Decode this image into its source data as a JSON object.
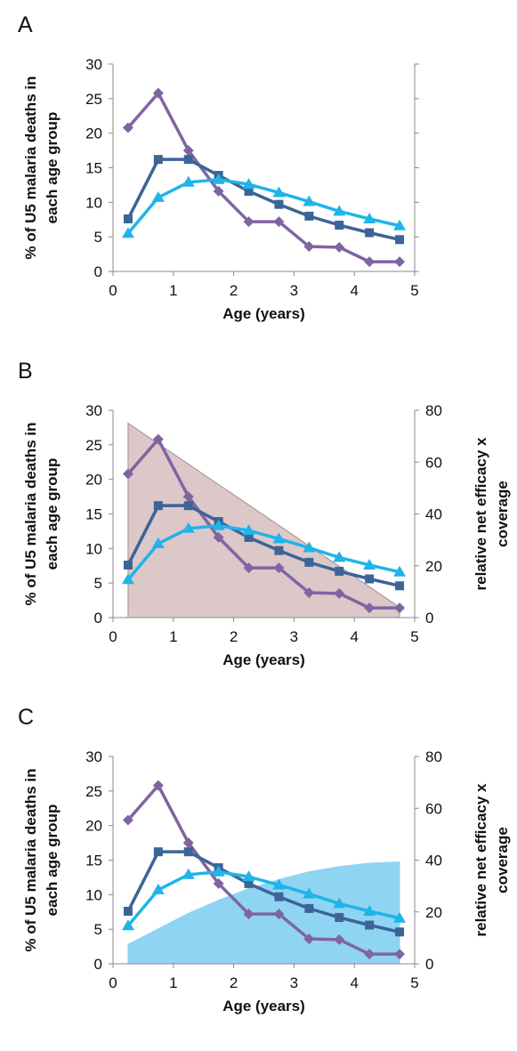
{
  "chart_data": [
    {
      "type": "line",
      "panel_label": "A",
      "xlabel": "Age (years)",
      "ylabel": [
        "% of U5 malaria deaths in",
        "each age group"
      ],
      "xlim": [
        0,
        5
      ],
      "ylim": [
        0,
        30
      ],
      "xticks": [
        "0",
        "1",
        "2",
        "3",
        "4",
        "5"
      ],
      "yticks": [
        "0",
        "5",
        "10",
        "15",
        "20",
        "25",
        "30"
      ],
      "grid": false,
      "series": [
        {
          "color": "#8064a2",
          "marker": "diamond",
          "x": [
            0.25,
            0.75,
            1.25,
            1.75,
            2.25,
            2.75,
            3.25,
            3.75,
            4.25,
            4.75
          ],
          "y": [
            20.8,
            25.8,
            17.5,
            11.6,
            7.2,
            7.2,
            3.6,
            3.5,
            1.4,
            1.4
          ]
        },
        {
          "color": "#3c6496",
          "marker": "square",
          "x": [
            0.25,
            0.75,
            1.25,
            1.75,
            2.25,
            2.75,
            3.25,
            3.75,
            4.25,
            4.75
          ],
          "y": [
            7.6,
            16.2,
            16.2,
            13.9,
            11.6,
            9.7,
            8.0,
            6.7,
            5.6,
            4.6
          ]
        },
        {
          "color": "#1fb4ea",
          "marker": "triangle",
          "x": [
            0.25,
            0.75,
            1.25,
            1.75,
            2.25,
            2.75,
            3.25,
            3.75,
            4.25,
            4.75
          ],
          "y": [
            5.5,
            10.7,
            12.9,
            13.3,
            12.6,
            11.4,
            10.1,
            8.7,
            7.6,
            6.6
          ]
        }
      ]
    },
    {
      "type": "line",
      "panel_label": "B",
      "xlabel": "Age (years)",
      "ylabel": [
        "% of U5 malaria deaths in",
        "each age group"
      ],
      "ylabel_right": [
        "relative net efficacy x",
        "coverage"
      ],
      "xlim": [
        0,
        5
      ],
      "ylim": [
        0,
        30
      ],
      "ylim_right": [
        0,
        80
      ],
      "xticks": [
        "0",
        "1",
        "2",
        "3",
        "4",
        "5"
      ],
      "yticks": [
        "0",
        "5",
        "10",
        "15",
        "20",
        "25",
        "30"
      ],
      "yticks_right": [
        "0",
        "20",
        "40",
        "60",
        "80"
      ],
      "grid": false,
      "area": {
        "color": "#dcc7c9",
        "edge": "#a09090",
        "axis": "right",
        "x": [
          0.25,
          4.75
        ],
        "y": [
          75,
          4
        ]
      },
      "series": [
        {
          "color": "#8064a2",
          "marker": "diamond",
          "x": [
            0.25,
            0.75,
            1.25,
            1.75,
            2.25,
            2.75,
            3.25,
            3.75,
            4.25,
            4.75
          ],
          "y": [
            20.8,
            25.8,
            17.5,
            11.6,
            7.2,
            7.2,
            3.6,
            3.5,
            1.4,
            1.4
          ]
        },
        {
          "color": "#3c6496",
          "marker": "square",
          "x": [
            0.25,
            0.75,
            1.25,
            1.75,
            2.25,
            2.75,
            3.25,
            3.75,
            4.25,
            4.75
          ],
          "y": [
            7.6,
            16.2,
            16.2,
            13.9,
            11.6,
            9.7,
            8.0,
            6.7,
            5.6,
            4.6
          ]
        },
        {
          "color": "#1fb4ea",
          "marker": "triangle",
          "x": [
            0.25,
            0.75,
            1.25,
            1.75,
            2.25,
            2.75,
            3.25,
            3.75,
            4.25,
            4.75
          ],
          "y": [
            5.5,
            10.7,
            12.9,
            13.3,
            12.6,
            11.4,
            10.1,
            8.7,
            7.6,
            6.6
          ]
        }
      ]
    },
    {
      "type": "line",
      "panel_label": "C",
      "xlabel": "Age (years)",
      "ylabel": [
        "% of U5 malaria deaths in",
        "each age group"
      ],
      "ylabel_right": [
        "relative net efficacy x",
        "coverage"
      ],
      "xlim": [
        0,
        5
      ],
      "ylim": [
        0,
        30
      ],
      "ylim_right": [
        0,
        80
      ],
      "xticks": [
        "0",
        "1",
        "2",
        "3",
        "4",
        "5"
      ],
      "yticks": [
        "0",
        "5",
        "10",
        "15",
        "20",
        "25",
        "30"
      ],
      "yticks_right": [
        "0",
        "20",
        "40",
        "60",
        "80"
      ],
      "grid": false,
      "area": {
        "color": "#8fd4f2",
        "edge": "#8fd4f2",
        "axis": "right",
        "x": [
          0.25,
          0.75,
          1.25,
          1.75,
          2.25,
          2.75,
          3.25,
          3.75,
          4.25,
          4.75
        ],
        "y": [
          7.5,
          13.5,
          19.5,
          24.5,
          29,
          32.5,
          35.5,
          37.5,
          38.8,
          39.3
        ]
      },
      "series": [
        {
          "color": "#8064a2",
          "marker": "diamond",
          "x": [
            0.25,
            0.75,
            1.25,
            1.75,
            2.25,
            2.75,
            3.25,
            3.75,
            4.25,
            4.75
          ],
          "y": [
            20.8,
            25.8,
            17.5,
            11.6,
            7.2,
            7.2,
            3.6,
            3.5,
            1.4,
            1.4
          ]
        },
        {
          "color": "#3c6496",
          "marker": "square",
          "x": [
            0.25,
            0.75,
            1.25,
            1.75,
            2.25,
            2.75,
            3.25,
            3.75,
            4.25,
            4.75
          ],
          "y": [
            7.6,
            16.2,
            16.2,
            13.9,
            11.6,
            9.7,
            8.0,
            6.7,
            5.6,
            4.6
          ]
        },
        {
          "color": "#1fb4ea",
          "marker": "triangle",
          "x": [
            0.25,
            0.75,
            1.25,
            1.75,
            2.25,
            2.75,
            3.25,
            3.75,
            4.25,
            4.75
          ],
          "y": [
            5.5,
            10.7,
            12.9,
            13.3,
            12.6,
            11.4,
            10.1,
            8.7,
            7.6,
            6.6
          ]
        }
      ]
    }
  ]
}
